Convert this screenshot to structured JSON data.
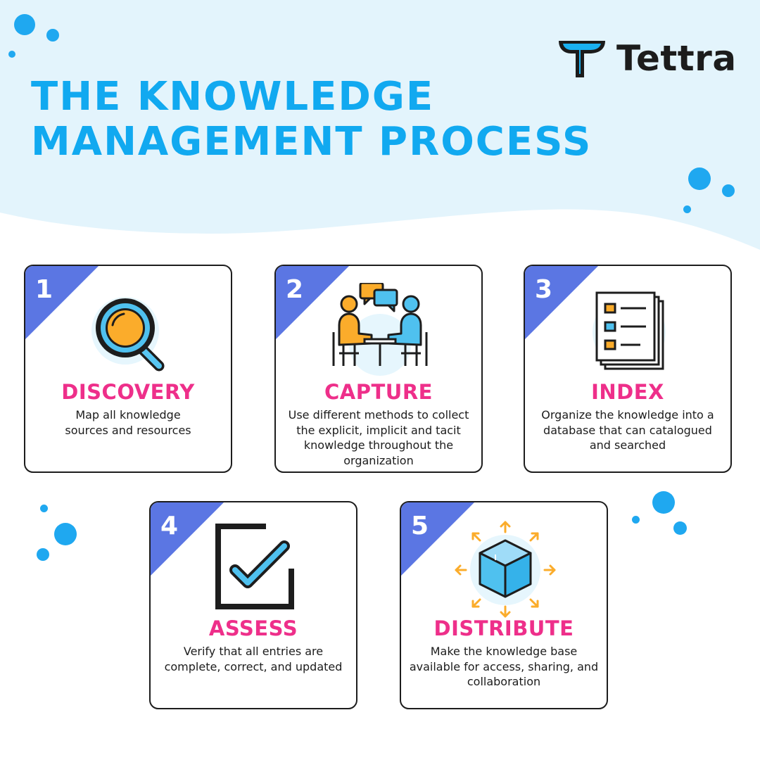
{
  "brand": {
    "name": "Tettra"
  },
  "colors": {
    "title_blue": "#11a9f0",
    "step_title_pink": "#ee2f8a",
    "step_number_badge": "#5b76e3",
    "background_wave": "#e3f4fc",
    "dots": "#1fa8f0"
  },
  "title": {
    "line1": "THE KNOWLEDGE",
    "line2": "MANAGEMENT PROCESS"
  },
  "steps": [
    {
      "number": "1",
      "title": "DISCOVERY",
      "description": "Map all knowledge sources and resources",
      "icon": "magnifying-glass-icon"
    },
    {
      "number": "2",
      "title": "CAPTURE",
      "description": "Use different methods to collect the explicit, implicit and tacit knowledge throughout the organization",
      "icon": "people-conversation-icon"
    },
    {
      "number": "3",
      "title": "INDEX",
      "description": "Organize the knowledge into a database that can catalogued and searched",
      "icon": "document-list-icon"
    },
    {
      "number": "4",
      "title": "ASSESS",
      "description": "Verify that all entries are complete, correct, and updated",
      "icon": "checkbox-icon"
    },
    {
      "number": "5",
      "title": "DISTRIBUTE",
      "description": "Make the knowledge base available for access, sharing, and collaboration",
      "icon": "box-arrows-icon"
    }
  ]
}
